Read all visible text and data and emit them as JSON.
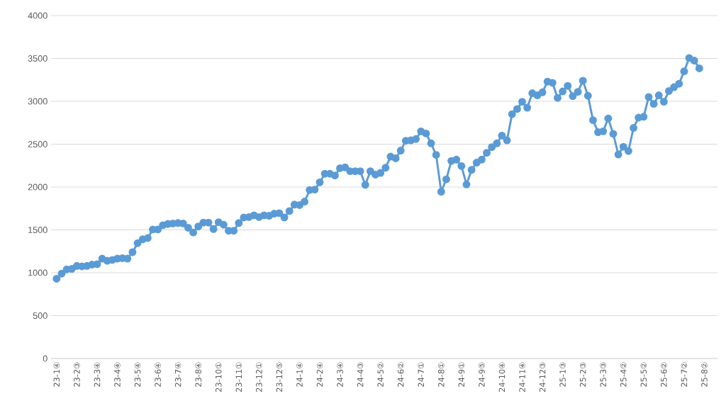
{
  "chart_data": {
    "type": "line",
    "marker": "circle",
    "grid": "y",
    "color": "#5b9bd5",
    "categories": [
      "23-1④",
      null,
      null,
      null,
      "23-2③",
      null,
      null,
      null,
      "23-3④",
      null,
      null,
      null,
      "23-4④",
      null,
      null,
      null,
      "23-5④",
      null,
      null,
      null,
      "23-6④",
      null,
      null,
      null,
      "23-7④",
      null,
      null,
      null,
      "23-8④",
      null,
      null,
      null,
      "23-10①",
      null,
      null,
      null,
      "23-11①",
      null,
      null,
      null,
      "23-12①",
      null,
      null,
      null,
      "23-12⑤",
      null,
      null,
      null,
      "24-1④",
      null,
      null,
      null,
      "24-2④",
      null,
      null,
      null,
      "24-3④",
      null,
      null,
      null,
      "24-4③",
      null,
      null,
      null,
      "24-5②",
      null,
      null,
      null,
      "24-6②",
      null,
      null,
      null,
      "24-7①",
      null,
      null,
      null,
      "24-8①",
      null,
      null,
      null,
      "24-9①",
      null,
      null,
      null,
      "24-9⑤",
      null,
      null,
      null,
      "24-10④",
      null,
      null,
      null,
      "24-11④",
      null,
      null,
      null,
      "24-12③",
      null,
      null,
      null,
      "25-1③",
      null,
      null,
      null,
      "25-2③",
      null,
      null,
      null,
      "25-3③",
      null,
      null,
      null,
      "25-4②",
      null,
      null,
      null,
      "25-5②",
      null,
      null,
      null,
      "25-6②",
      null,
      null,
      null,
      "25-7②",
      null,
      null,
      null,
      "25-8②"
    ],
    "values": [
      930,
      990,
      1040,
      1045,
      1080,
      1075,
      1080,
      1095,
      1100,
      1165,
      1140,
      1150,
      1165,
      1170,
      1165,
      1240,
      1345,
      1390,
      1405,
      1505,
      1505,
      1555,
      1570,
      1575,
      1580,
      1575,
      1525,
      1470,
      1540,
      1585,
      1585,
      1510,
      1590,
      1560,
      1490,
      1490,
      1580,
      1645,
      1650,
      1670,
      1650,
      1670,
      1665,
      1690,
      1695,
      1645,
      1720,
      1795,
      1790,
      1830,
      1965,
      1970,
      2055,
      2155,
      2155,
      2135,
      2220,
      2230,
      2185,
      2185,
      2185,
      2025,
      2185,
      2145,
      2165,
      2225,
      2355,
      2335,
      2425,
      2540,
      2545,
      2560,
      2650,
      2625,
      2510,
      2375,
      1945,
      2090,
      2305,
      2320,
      2245,
      2030,
      2200,
      2285,
      2320,
      2400,
      2465,
      2510,
      2600,
      2545,
      2850,
      2910,
      2995,
      2925,
      3095,
      3070,
      3105,
      3230,
      3215,
      3040,
      3115,
      3180,
      3060,
      3110,
      3240,
      3065,
      2780,
      2640,
      2650,
      2800,
      2620,
      2380,
      2470,
      2420,
      2690,
      2810,
      2820,
      3050,
      2970,
      3070,
      2995,
      3120,
      3165,
      3205,
      3350,
      3505,
      3475,
      3385,
      null
    ],
    "ylim": [
      0,
      4000
    ],
    "yticks": [
      0,
      500,
      1000,
      1500,
      2000,
      2500,
      3000,
      3500,
      4000
    ]
  }
}
